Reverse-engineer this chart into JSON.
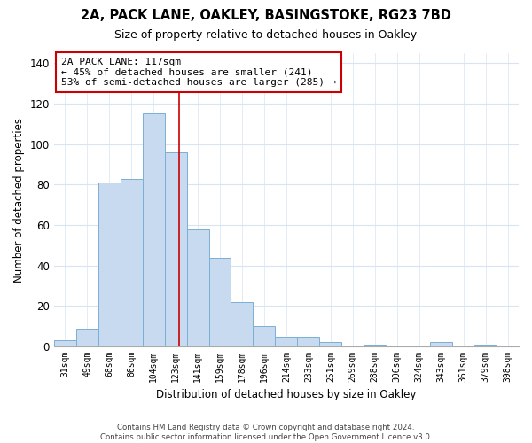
{
  "title1": "2A, PACK LANE, OAKLEY, BASINGSTOKE, RG23 7BD",
  "title2": "Size of property relative to detached houses in Oakley",
  "xlabel": "Distribution of detached houses by size in Oakley",
  "ylabel": "Number of detached properties",
  "bar_labels": [
    "31sqm",
    "49sqm",
    "68sqm",
    "86sqm",
    "104sqm",
    "123sqm",
    "141sqm",
    "159sqm",
    "178sqm",
    "196sqm",
    "214sqm",
    "233sqm",
    "251sqm",
    "269sqm",
    "288sqm",
    "306sqm",
    "324sqm",
    "343sqm",
    "361sqm",
    "379sqm",
    "398sqm"
  ],
  "bar_values": [
    3,
    9,
    81,
    83,
    115,
    96,
    58,
    44,
    22,
    10,
    5,
    5,
    2,
    0,
    1,
    0,
    0,
    2,
    0,
    1,
    0
  ],
  "bar_color": "#c8daf0",
  "bar_edge_color": "#7bafd4",
  "vline_x_index": 5.15,
  "vline_color": "#cc0000",
  "annotation_text": "2A PACK LANE: 117sqm\n← 45% of detached houses are smaller (241)\n53% of semi-detached houses are larger (285) →",
  "annotation_box_color": "#ffffff",
  "annotation_box_edge": "#cc0000",
  "ylim": [
    0,
    145
  ],
  "yticks": [
    0,
    20,
    40,
    60,
    80,
    100,
    120,
    140
  ],
  "footer_text": "Contains HM Land Registry data © Crown copyright and database right 2024.\nContains public sector information licensed under the Open Government Licence v3.0.",
  "bg_color": "#ffffff",
  "grid_color": "#d8e4f0"
}
